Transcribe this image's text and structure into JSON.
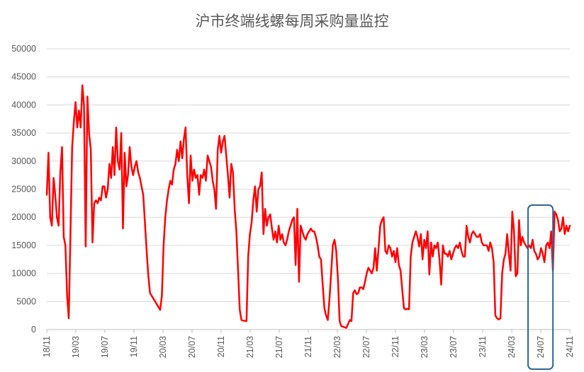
{
  "chart_data": {
    "type": "line",
    "title": "沪市终端线螺每周采购量监控",
    "xlabel": "",
    "ylabel": "",
    "ylim": [
      0,
      50000
    ],
    "yticks": [
      0,
      5000,
      10000,
      15000,
      20000,
      25000,
      30000,
      35000,
      40000,
      45000,
      50000
    ],
    "xticks": [
      "18/11",
      "19/03",
      "19/07",
      "19/11",
      "20/03",
      "20/07",
      "20/11",
      "21/03",
      "21/07",
      "21/11",
      "22/03",
      "22/07",
      "22/11",
      "23/03",
      "23/07",
      "23/11",
      "24/03",
      "24/07",
      "24/11"
    ],
    "grid": "horizontal",
    "legend": "none",
    "line_color": "#ff0000",
    "highlight_box_color": "#2e6596",
    "highlight_range_weeks": [
      286,
      294
    ],
    "series": [
      {
        "values": [
          24000,
          31500,
          20000,
          18500,
          27000,
          24000,
          20000,
          18500,
          28000,
          32500,
          16500,
          15000,
          6000,
          2000,
          17000,
          32500,
          37000,
          40500,
          36000,
          39000,
          36000,
          43500,
          40000,
          14800,
          41500,
          35000,
          32000,
          15500,
          22500,
          23000,
          22500,
          23500,
          23000,
          25500,
          25500,
          23500,
          25000,
          29500,
          27000,
          32500,
          27500,
          36000,
          30000,
          28500,
          35000,
          18000,
          31500,
          25500,
          27500,
          32500,
          29000,
          27500,
          29000,
          30000,
          28000,
          27000,
          25500,
          24000,
          19000,
          14000,
          9500,
          6500,
          6000,
          5500,
          5000,
          4500,
          4000,
          3500,
          6000,
          15000,
          20000,
          23000,
          25000,
          26500,
          25800,
          28500,
          29500,
          32000,
          30000,
          33500,
          30500,
          34000,
          36000,
          27500,
          22500,
          31000,
          26500,
          28500,
          27000,
          27500,
          24000,
          27500,
          27000,
          28500,
          26500,
          31000,
          30000,
          29000,
          26500,
          25000,
          21500,
          32000,
          34500,
          31500,
          33500,
          34500,
          31000,
          27500,
          23500,
          29500,
          28000,
          21500,
          17500,
          10500,
          3500,
          1700,
          1600,
          1550,
          1500,
          13000,
          17000,
          19000,
          23000,
          25500,
          21000,
          25000,
          25500,
          28000,
          17000,
          21500,
          18500,
          20000,
          20500,
          18000,
          16000,
          17500,
          15500,
          18500,
          16000,
          17000,
          15500,
          15000,
          16000,
          17500,
          18500,
          19500,
          20000,
          11500,
          21500,
          8500,
          18500,
          17500,
          16500,
          16000,
          17000,
          17500,
          18000,
          17500,
          17500,
          16500,
          15000,
          13000,
          12500,
          8000,
          3800,
          2500,
          1700,
          5500,
          10000,
          15000,
          16000,
          14000,
          9000,
          1500,
          600,
          500,
          400,
          300,
          1000,
          1700,
          1500,
          6500,
          7000,
          6300,
          6500,
          7500,
          7500,
          7200,
          8500,
          10000,
          11000,
          10500,
          10000,
          11000,
          14500,
          10500,
          14500,
          18500,
          19500,
          20000,
          14000,
          13500,
          15000,
          14500,
          13000,
          14000,
          12000,
          14500,
          11500,
          10500,
          7000,
          3800,
          3600,
          3700,
          3600,
          13000,
          15500,
          16500,
          17500,
          16500,
          14800,
          17000,
          12500,
          16000,
          14500,
          17500,
          9800,
          15500,
          13000,
          15000,
          14500,
          15500,
          12500,
          8000,
          15000,
          13500,
          13500,
          13000,
          14000,
          12500,
          13500,
          14500,
          15000,
          14500,
          15500,
          14000,
          13000,
          13000,
          18500,
          16500,
          15500,
          17000,
          17500,
          17000,
          16500,
          16500,
          17000,
          15500,
          15000,
          15000,
          15000,
          14000,
          15500,
          14500,
          12000,
          2500,
          2000,
          1800,
          2000,
          10000,
          12500,
          13500,
          17000,
          13500,
          10500,
          21000,
          17500,
          9500,
          10000,
          19500,
          15000,
          16500,
          15500,
          15000,
          14500,
          15000,
          14500,
          16000,
          14000,
          13500,
          12500,
          13000,
          14500,
          13500,
          12000,
          15000,
          15500,
          14500,
          17500,
          10500,
          21000,
          20500,
          19500,
          17500,
          18000,
          20000,
          17000,
          18500,
          17500,
          18500
        ]
      }
    ]
  }
}
